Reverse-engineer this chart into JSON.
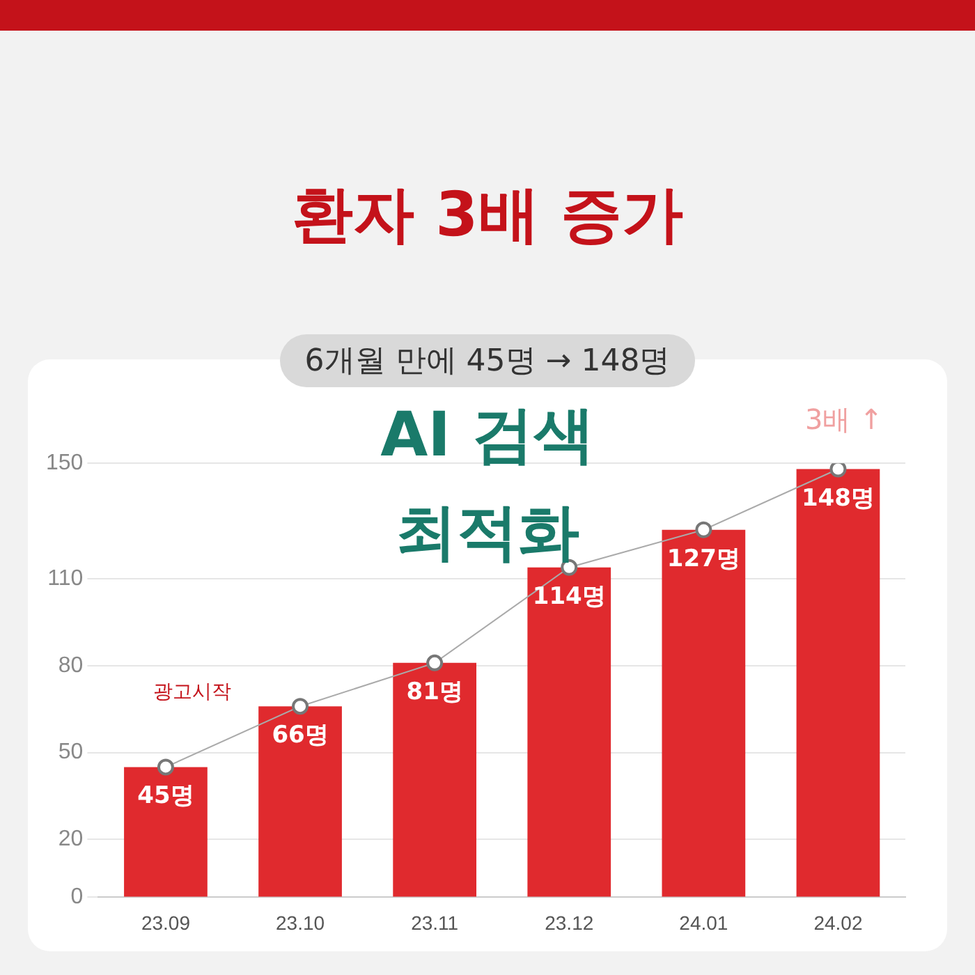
{
  "chart_data": {
    "type": "bar",
    "title": "환자 3배 증가",
    "subtitle": "6개월 만에 45명 → 148명",
    "categories": [
      "23.09",
      "23.10",
      "23.11",
      "23.12",
      "24.01",
      "24.02"
    ],
    "series": [
      {
        "color": "#e02a2e",
        "values": [
          45,
          66,
          81,
          114,
          127,
          148
        ],
        "value_labels": [
          "45명",
          "66명",
          "81명",
          "114명",
          "127명",
          "148명"
        ]
      },
      {
        "type": "line",
        "color": "#aaaaaa",
        "values": [
          45,
          66,
          81,
          114,
          127,
          148
        ],
        "marker": "circle"
      }
    ],
    "ylim": [
      0,
      150
    ],
    "yticks": [
      0,
      20,
      50,
      80,
      110,
      150
    ],
    "grid": "y",
    "legend": false,
    "annotations": [
      "AI 검색 최적화",
      "광고시작",
      "3배 ↑"
    ]
  }
}
